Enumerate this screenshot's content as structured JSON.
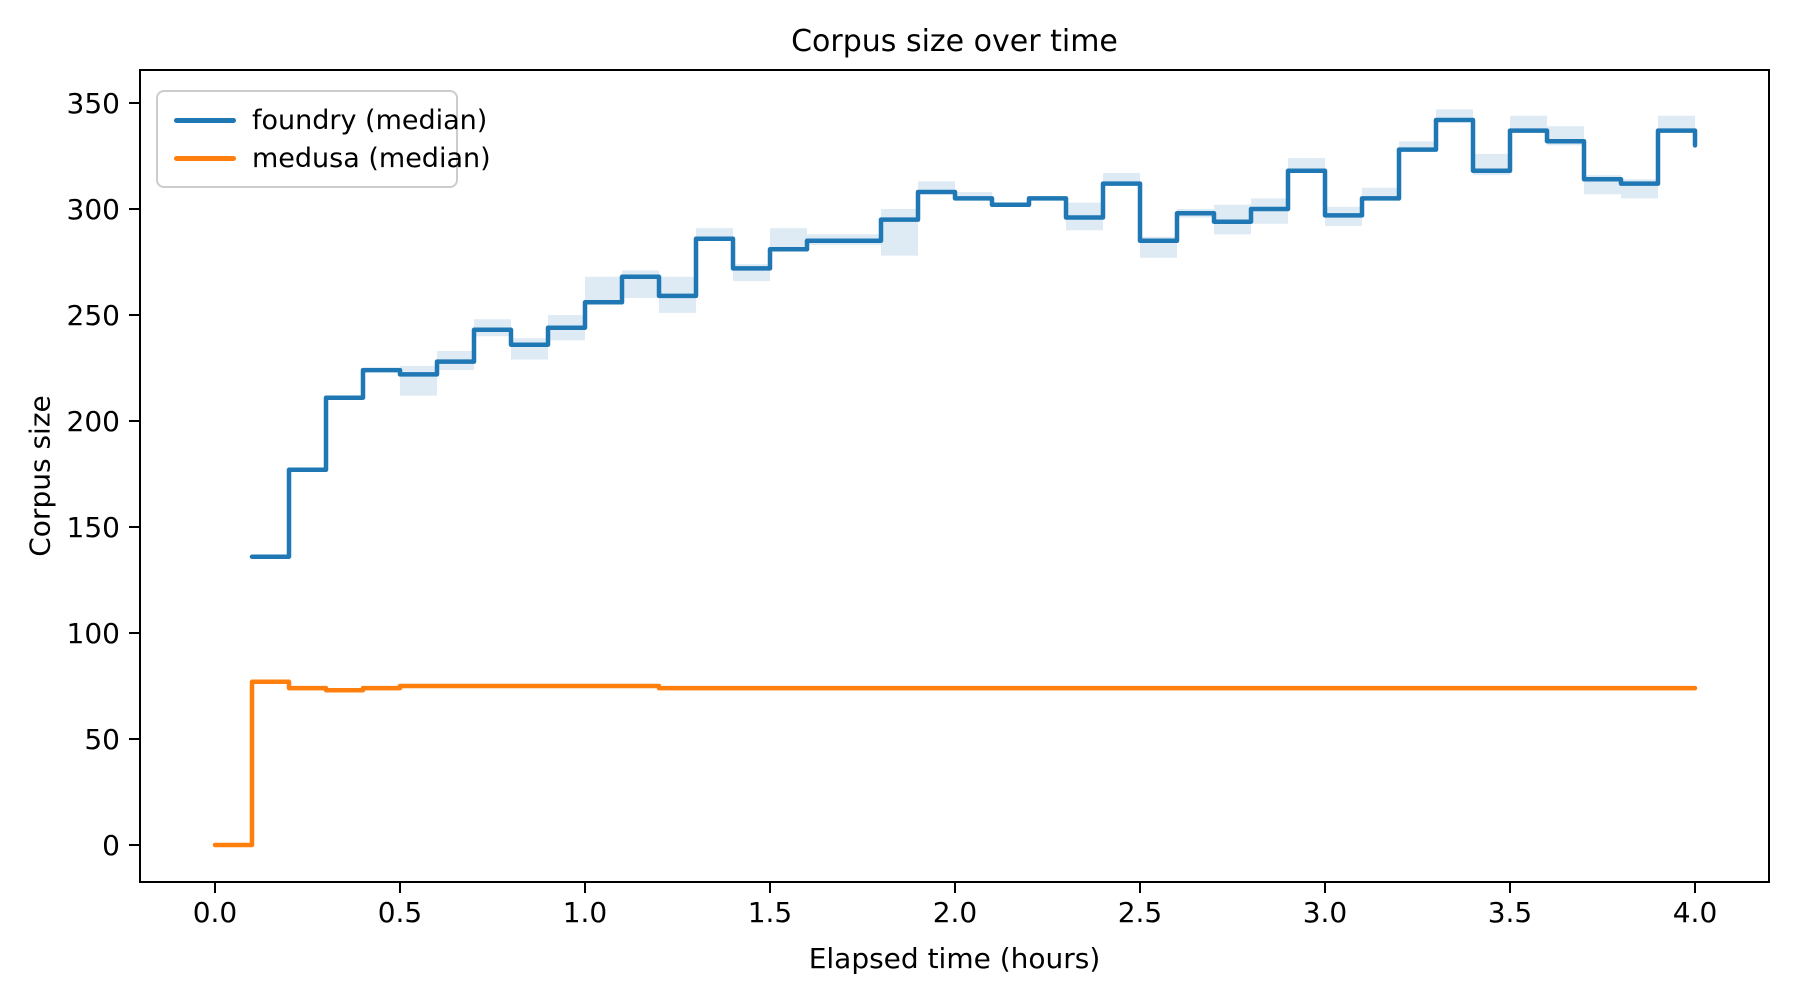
{
  "title": "Corpus size over time",
  "xlabel": "Elapsed time (hours)",
  "ylabel": "Corpus size",
  "legend": [
    {
      "label": "foundry (median)",
      "color": "#1f77b4"
    },
    {
      "label": "medusa (median)",
      "color": "#ff7f0e"
    }
  ],
  "axes": {
    "xlim": [
      -0.2027,
      4.2
    ],
    "ylim": [
      -17.45,
      365.57
    ],
    "xtick_values": [
      0.0,
      0.5,
      1.0,
      1.5,
      2.0,
      2.5,
      3.0,
      3.5,
      4.0
    ],
    "xtick_labels": [
      "0.0",
      "0.5",
      "1.0",
      "1.5",
      "2.0",
      "2.5",
      "3.0",
      "3.5",
      "4.0"
    ],
    "ytick_values": [
      0,
      50,
      100,
      150,
      200,
      250,
      300,
      350
    ],
    "ytick_labels": [
      "0",
      "50",
      "100",
      "150",
      "200",
      "250",
      "300",
      "350"
    ]
  },
  "chart_data": {
    "type": "line",
    "title": "Corpus size over time",
    "xlabel": "Elapsed time (hours)",
    "ylabel": "Corpus size",
    "step_mode": "post",
    "grid": false,
    "legend_position": "upper left",
    "band_alpha": 0.15,
    "series": [
      {
        "name": "foundry (median)",
        "color": "#1f77b4",
        "x": [
          0.1,
          0.2,
          0.3,
          0.4,
          0.5,
          0.6,
          0.7,
          0.8,
          0.9,
          1.0,
          1.1,
          1.2,
          1.3,
          1.4,
          1.5,
          1.6,
          1.7,
          1.8,
          1.9,
          2.0,
          2.1,
          2.2,
          2.3,
          2.4,
          2.5,
          2.6,
          2.7,
          2.8,
          2.9,
          3.0,
          3.1,
          3.2,
          3.3,
          3.4,
          3.5,
          3.6,
          3.7,
          3.8,
          3.9,
          4.0
        ],
        "y": [
          136,
          177,
          211,
          224,
          222,
          228,
          243,
          236,
          244,
          256,
          268,
          259,
          286,
          272,
          281,
          285,
          285,
          295,
          308,
          305,
          302,
          305,
          296,
          312,
          285,
          298,
          294,
          300,
          318,
          297,
          305,
          328,
          342,
          318,
          337,
          332,
          314,
          312,
          337,
          330
        ],
        "band_lo": [
          136,
          177,
          211,
          224,
          212,
          224,
          240,
          229,
          238,
          256,
          258,
          251,
          286,
          266,
          281,
          283,
          283,
          278,
          308,
          305,
          302,
          305,
          290,
          312,
          277,
          296,
          288,
          293,
          318,
          292,
          305,
          328,
          342,
          316,
          337,
          330,
          307,
          305,
          337,
          330
        ],
        "band_hi": [
          136,
          177,
          211,
          224,
          226,
          233,
          248,
          239,
          250,
          268,
          271,
          268,
          291,
          274,
          291,
          288,
          288,
          300,
          313,
          308,
          302,
          305,
          303,
          317,
          287,
          300,
          302,
          305,
          324,
          301,
          310,
          332,
          347,
          326,
          344,
          339,
          316,
          314,
          344,
          334
        ]
      },
      {
        "name": "medusa (median)",
        "color": "#ff7f0e",
        "x": [
          0.0,
          0.1,
          0.2,
          0.3,
          0.4,
          0.5,
          0.6,
          0.7,
          0.8,
          0.9,
          1.0,
          1.1,
          1.2,
          1.3,
          1.4,
          1.5,
          1.6,
          1.7,
          1.8,
          1.9,
          2.0,
          2.1,
          2.2,
          2.3,
          2.4,
          2.5,
          2.6,
          2.7,
          2.8,
          2.9,
          3.0,
          3.1,
          3.2,
          3.3,
          3.4,
          3.5,
          3.6,
          3.7,
          3.8,
          3.9,
          4.0
        ],
        "y": [
          0,
          77,
          74,
          73,
          74,
          75,
          75,
          75,
          75,
          75,
          75,
          75,
          74,
          74,
          74,
          74,
          74,
          74,
          74,
          74,
          74,
          74,
          74,
          74,
          74,
          74,
          74,
          74,
          74,
          74,
          74,
          74,
          74,
          74,
          74,
          74,
          74,
          74,
          74,
          74,
          74
        ]
      }
    ]
  }
}
